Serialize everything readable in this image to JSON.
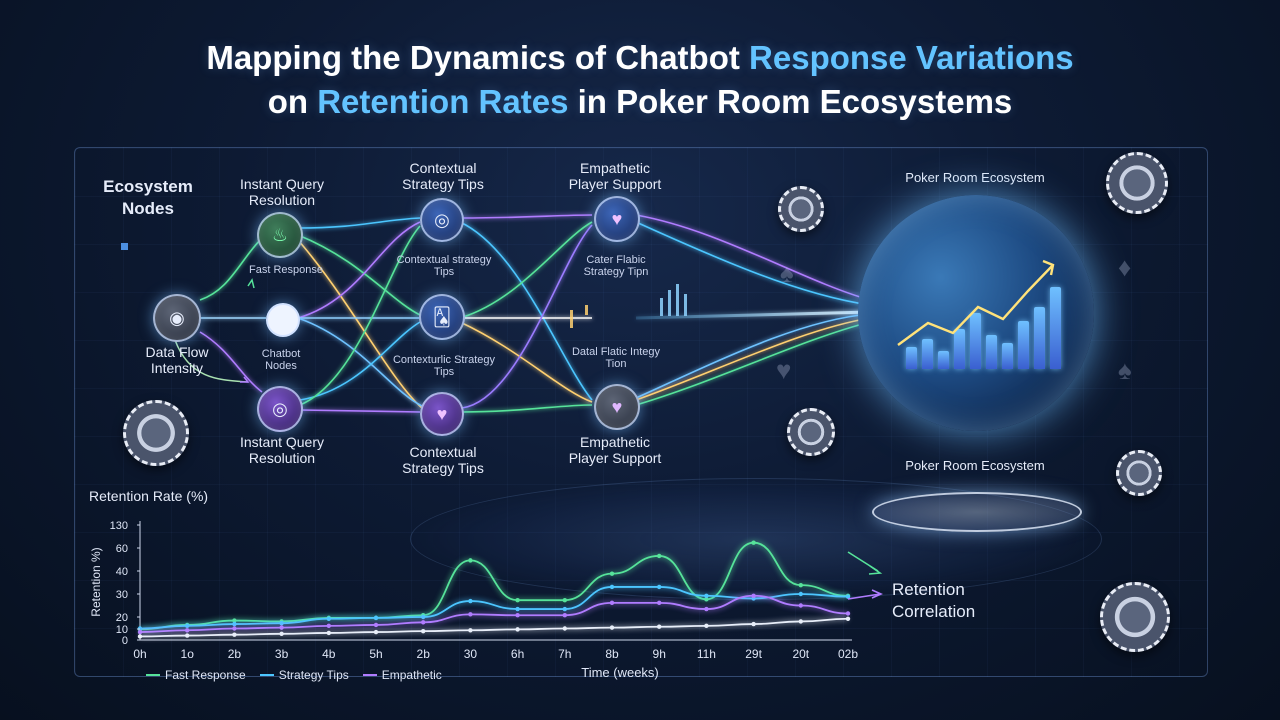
{
  "title": {
    "line1_a": "Mapping the Dynamics of Chatbot ",
    "line1_b": "Response Variations",
    "line2_a": "on ",
    "line2_b": "Retention Rates",
    "line2_c": " in Poker Room Ecosystems"
  },
  "diagram": {
    "ecosystem_nodes": "Ecosystem Nodes",
    "data_flow_intensity": "Data Flow Intensity",
    "fast_response": "Fast Response",
    "chatbot_nodes": "Chatbot Nodes",
    "instant_query_top": "Instant Query Resolution",
    "instant_query_bottom": "Instant Query Resolution",
    "contextual_top": "Contextual Strategy Tips",
    "contextual_mid_top": "Contextual strategy Tips",
    "contextual_mid_bottom": "Contexturlic Strategy Tips",
    "contextual_bottom": "Contextual Strategy Tips",
    "empathetic_top": "Empathetic Player Support",
    "empathetic_mid_top": "Cater Flabic Strategy Tipn",
    "empathetic_mid_bottom": "Datal Flatic Integy Tion",
    "empathetic_bottom": "Empathetic Player Support",
    "poker_room_top": "Poker Room Ecosystem",
    "poker_room_bottom": "Poker Room Ecosystem",
    "retention_correlation": "Retention Correlation"
  },
  "chart_data": {
    "type": "line",
    "title": "Retention Rate (%)",
    "ylabel": "Retention %)",
    "xlabel": "Time (weeks)",
    "x_ticks": [
      "0h",
      "1o",
      "2b",
      "3b",
      "4b",
      "5h",
      "2b",
      "30",
      "6h",
      "7h",
      "8b",
      "9h",
      "11h",
      "29t",
      "20t",
      "02b"
    ],
    "y_ticks": [
      "0",
      "10",
      "20",
      "30",
      "40",
      "60",
      "130"
    ],
    "ylim": [
      0,
      130
    ],
    "series": [
      {
        "name": "Fast Response",
        "color": "#56e39a",
        "values": [
          12,
          17,
          22,
          21,
          25,
          25,
          28,
          90,
          45,
          45,
          75,
          95,
          46,
          110,
          62,
          50
        ]
      },
      {
        "name": "Strategy Tips",
        "color": "#4cc6ff",
        "values": [
          13,
          16,
          18,
          19,
          24,
          25,
          26,
          44,
          35,
          35,
          60,
          60,
          50,
          47,
          52,
          49
        ]
      },
      {
        "name": "Empathetic",
        "color": "#b07cff",
        "values": [
          9,
          11,
          13,
          14,
          16,
          17,
          20,
          29,
          28,
          28,
          42,
          42,
          35,
          50,
          39,
          30
        ]
      },
      {
        "name": "",
        "color": "#e8eef9",
        "values": [
          4,
          5,
          6,
          7,
          8,
          9,
          10,
          11,
          12,
          13,
          14,
          15,
          16,
          18,
          21,
          24
        ]
      }
    ]
  }
}
